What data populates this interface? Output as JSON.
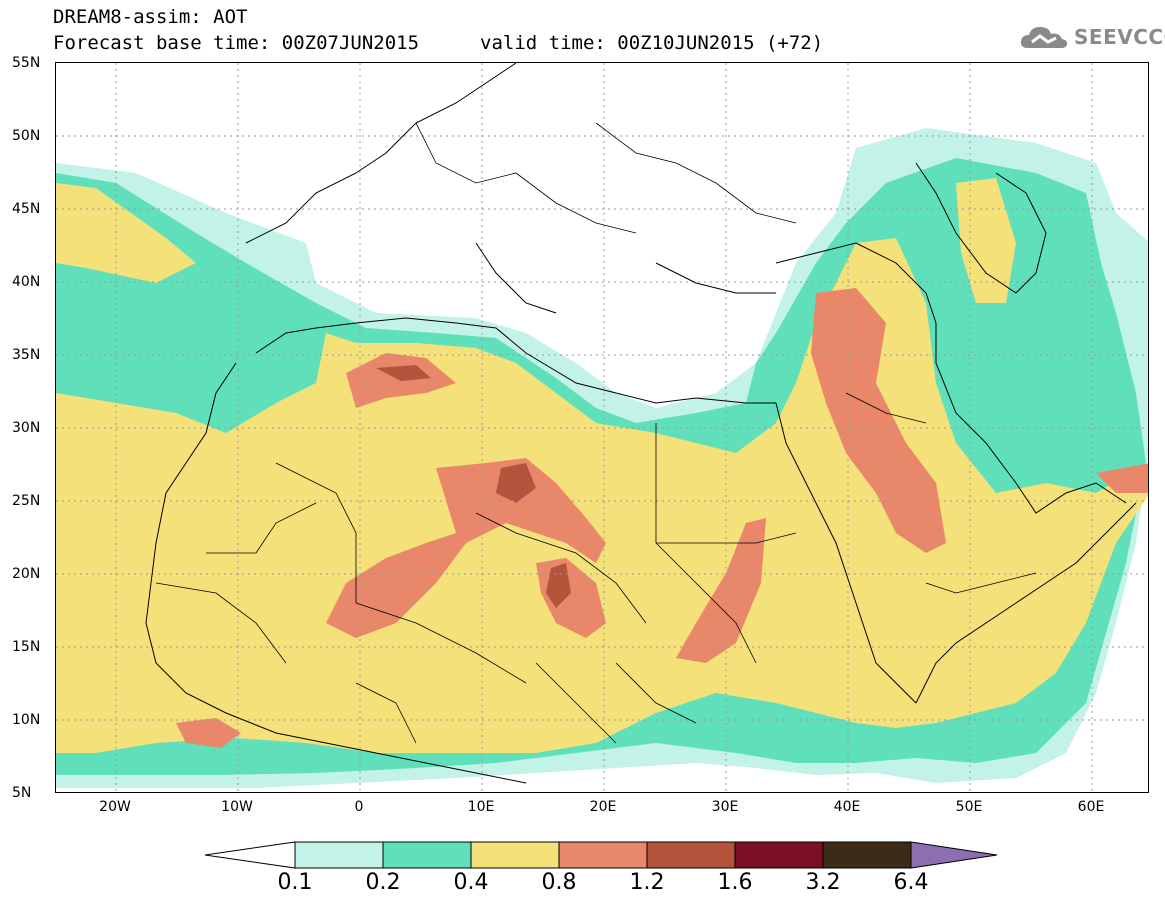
{
  "title": {
    "line1": "DREAM8-assim: AOT",
    "line2": "Forecast base time: 00Z07JUN2015",
    "valid": "valid time: 00Z10JUN2015 (+72)"
  },
  "logo": {
    "text": "SEEVCCC",
    "icon": "cloud-icon"
  },
  "lat_labels": [
    "55N",
    "50N",
    "45N",
    "40N",
    "35N",
    "30N",
    "25N",
    "20N",
    "15N",
    "10N",
    "5N"
  ],
  "lon_labels": [
    "20W",
    "10W",
    "0",
    "10E",
    "20E",
    "30E",
    "40E",
    "50E",
    "60E"
  ],
  "legend": {
    "levels": [
      "0.1",
      "0.2",
      "0.4",
      "0.8",
      "1.2",
      "1.6",
      "3.2",
      "6.4"
    ],
    "colors": [
      "#ffffff",
      "#c2f2e8",
      "#5fe0bb",
      "#f5e17a",
      "#e8876a",
      "#b5533d",
      "#7a0f25",
      "#3d2a17",
      "#8b6fb0"
    ]
  }
}
